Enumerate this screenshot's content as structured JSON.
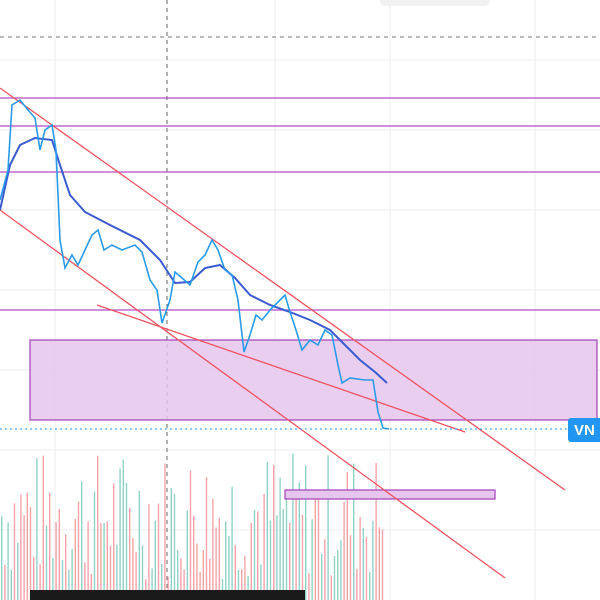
{
  "price_label": "VN"
}
